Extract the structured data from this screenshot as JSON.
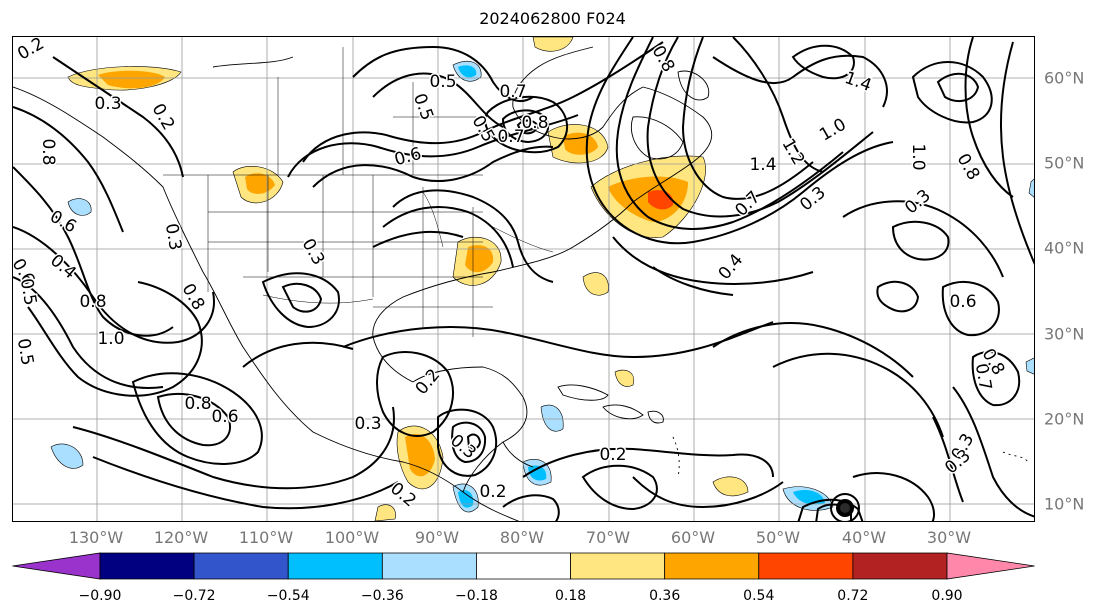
{
  "title": "2024062800 F024",
  "lon_labels": [
    "130°W",
    "120°W",
    "110°W",
    "100°W",
    "90°W",
    "80°W",
    "70°W",
    "60°W",
    "50°W",
    "40°W",
    "30°W"
  ],
  "lat_labels": [
    "60°N",
    "50°N",
    "40°N",
    "30°N",
    "20°N",
    "10°N"
  ],
  "colorbar": {
    "ticks": [
      "−0.90",
      "−0.72",
      "−0.54",
      "−0.36",
      "−0.18",
      "0.18",
      "0.36",
      "0.54",
      "0.72",
      "0.90"
    ],
    "colors": [
      "#9933cc",
      "#000080",
      "#3355cc",
      "#00bfff",
      "#aadfff",
      "#ffffff",
      "#ffe680",
      "#ffa500",
      "#ff4500",
      "#b22222",
      "#ff88aa"
    ]
  },
  "contour_labels": [
    {
      "text": "0.2",
      "rot": -30
    },
    {
      "text": "0.5",
      "rot": 0
    },
    {
      "text": "0.7",
      "rot": 0
    },
    {
      "text": "0.8",
      "rot": 60
    },
    {
      "text": "1.4",
      "rot": 20
    },
    {
      "text": "0.5",
      "rot": 70
    },
    {
      "text": "0.3",
      "rot": 0
    },
    {
      "text": "0.2",
      "rot": 60
    },
    {
      "text": "1.0",
      "rot": -30
    },
    {
      "text": "0.6",
      "rot": -15
    },
    {
      "text": "0.5",
      "rot": 60
    },
    {
      "text": "1.0",
      "rot": 90
    },
    {
      "text": "0.8",
      "rot": 60
    },
    {
      "text": "0.8",
      "rot": 0
    },
    {
      "text": "0.7",
      "rot": 0
    },
    {
      "text": "1.4",
      "rot": 0
    },
    {
      "text": "1.2",
      "rot": 60
    },
    {
      "text": "0.7",
      "rot": -45
    },
    {
      "text": "0.3",
      "rot": -40
    },
    {
      "text": "0.3",
      "rot": -40
    },
    {
      "text": "0.8",
      "rot": 90
    },
    {
      "text": "0.6",
      "rot": 30
    },
    {
      "text": "0.4",
      "rot": 40
    },
    {
      "text": "0.3",
      "rot": 80
    },
    {
      "text": "0.3",
      "rot": 60
    },
    {
      "text": "0.4",
      "rot": -50
    },
    {
      "text": "0.6",
      "rot": 0
    },
    {
      "text": "0.8",
      "rot": 60
    },
    {
      "text": "0.8",
      "rot": 0
    },
    {
      "text": "1.0",
      "rot": 0
    },
    {
      "text": "0.5",
      "rot": 80
    },
    {
      "text": "0.2",
      "rot": -50
    },
    {
      "text": "0.8",
      "rot": 0
    },
    {
      "text": "0.6",
      "rot": 0
    },
    {
      "text": "0.3",
      "rot": 0
    },
    {
      "text": "0.2",
      "rot": 0
    },
    {
      "text": "0.3",
      "rot": 40
    },
    {
      "text": "0.2",
      "rot": 0
    },
    {
      "text": "0.2",
      "rot": 40
    },
    {
      "text": "0.3",
      "rot": -60
    },
    {
      "text": "0.7",
      "rot": 80
    },
    {
      "text": "0.8",
      "rot": 60
    },
    {
      "text": "0.6",
      "rot": 60
    },
    {
      "text": "0.5",
      "rot": 80
    },
    {
      "text": "0.3",
      "rot": -40
    }
  ]
}
